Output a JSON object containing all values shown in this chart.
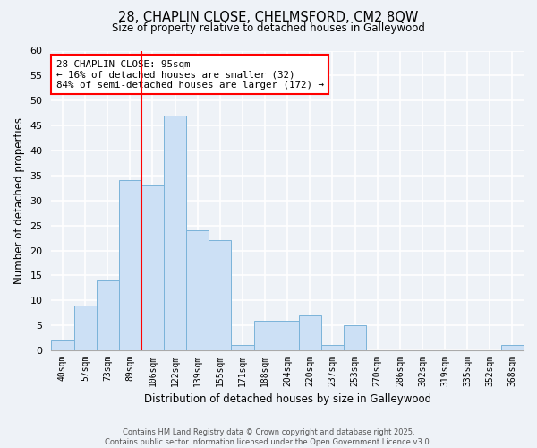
{
  "title_line1": "28, CHAPLIN CLOSE, CHELMSFORD, CM2 8QW",
  "title_line2": "Size of property relative to detached houses in Galleywood",
  "xlabel": "Distribution of detached houses by size in Galleywood",
  "ylabel": "Number of detached properties",
  "bin_labels": [
    "40sqm",
    "57sqm",
    "73sqm",
    "89sqm",
    "106sqm",
    "122sqm",
    "139sqm",
    "155sqm",
    "171sqm",
    "188sqm",
    "204sqm",
    "220sqm",
    "237sqm",
    "253sqm",
    "270sqm",
    "286sqm",
    "302sqm",
    "319sqm",
    "335sqm",
    "352sqm",
    "368sqm"
  ],
  "bin_values": [
    2,
    9,
    14,
    34,
    33,
    47,
    24,
    22,
    1,
    6,
    6,
    7,
    1,
    5,
    0,
    0,
    0,
    0,
    0,
    0,
    1
  ],
  "bar_color": "#cce0f5",
  "bar_edge_color": "#7ab3d9",
  "vline_x_index": 3.5,
  "vline_color": "red",
  "annotation_text": "28 CHAPLIN CLOSE: 95sqm\n← 16% of detached houses are smaller (32)\n84% of semi-detached houses are larger (172) →",
  "annotation_box_color": "white",
  "annotation_box_edge_color": "red",
  "ylim": [
    0,
    60
  ],
  "yticks": [
    0,
    5,
    10,
    15,
    20,
    25,
    30,
    35,
    40,
    45,
    50,
    55,
    60
  ],
  "footer_line1": "Contains HM Land Registry data © Crown copyright and database right 2025.",
  "footer_line2": "Contains public sector information licensed under the Open Government Licence v3.0.",
  "background_color": "#eef2f7"
}
